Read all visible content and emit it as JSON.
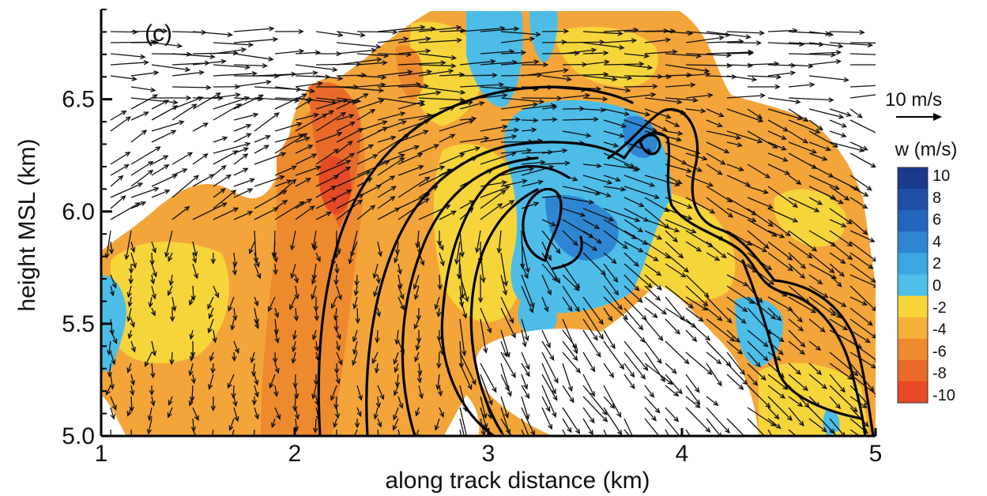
{
  "chart_data": {
    "type": "heatmap",
    "panel_label": "(c)",
    "xlabel": "along track distance (km)",
    "ylabel": "height MSL (km)",
    "xlim": [
      1,
      5
    ],
    "ylim": [
      5.0,
      6.9
    ],
    "x_ticks": [
      1,
      2,
      3,
      4,
      5
    ],
    "x_tick_labels": [
      "1",
      "2",
      "3",
      "4",
      "5"
    ],
    "y_ticks": [
      5.0,
      5.5,
      6.0,
      6.5
    ],
    "y_tick_labels": [
      "5.0",
      "5.5",
      "6.0",
      "6.5"
    ],
    "vector_reference": {
      "label": "10 m/s",
      "speed": 10
    },
    "colorbar": {
      "title": "w (m/s)",
      "tick_labels": [
        "10",
        "8",
        "6",
        "4",
        "2",
        "0",
        "-2",
        "-4",
        "-6",
        "-8",
        "-10"
      ],
      "boundaries": [
        10,
        8,
        6,
        4,
        2,
        0,
        -2,
        -4,
        -6,
        -8,
        -10
      ],
      "colors": [
        "#1a3a8c",
        "#1f4fa8",
        "#2466bf",
        "#2e86d3",
        "#3aa7e2",
        "#4dc0ea",
        "#f6d53a",
        "#f6b13a",
        "#f08a2e",
        "#ea6a2a",
        "#e64a26"
      ]
    },
    "background_color": "#f3a53a",
    "grid": false,
    "legend": "right"
  }
}
